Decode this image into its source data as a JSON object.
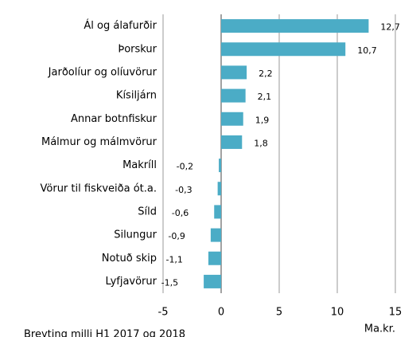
{
  "chart_data": {
    "type": "bar",
    "orientation": "horizontal",
    "categories": [
      "Ál og álafurðir",
      "Þorskur",
      "Jarðolíur og olíuvörur",
      "Kísiljárn",
      "Annar botnfiskur",
      "Málmur og málmvörur",
      "Makríll",
      "Vörur til fiskveiða ót.a.",
      "Síld",
      "Silungur",
      "Notuð skip",
      "Lyfjavörur"
    ],
    "values": [
      12.7,
      10.7,
      2.2,
      2.1,
      1.9,
      1.8,
      -0.2,
      -0.3,
      -0.6,
      -0.9,
      -1.1,
      -1.5
    ],
    "value_labels": [
      "12,7",
      "10,7",
      "2,2",
      "2,1",
      "1,9",
      "1,8",
      "-0,2",
      "-0,3",
      "-0,6",
      "-0,9",
      "-1,1",
      "-1,5"
    ],
    "color": "#4bacc6",
    "xlim": [
      -5,
      15
    ],
    "xticks": [
      -5,
      0,
      5,
      10,
      15
    ],
    "grid": true,
    "x_label": "Ma.kr.",
    "note": "Breyting milli H1 2017 og 2018"
  }
}
